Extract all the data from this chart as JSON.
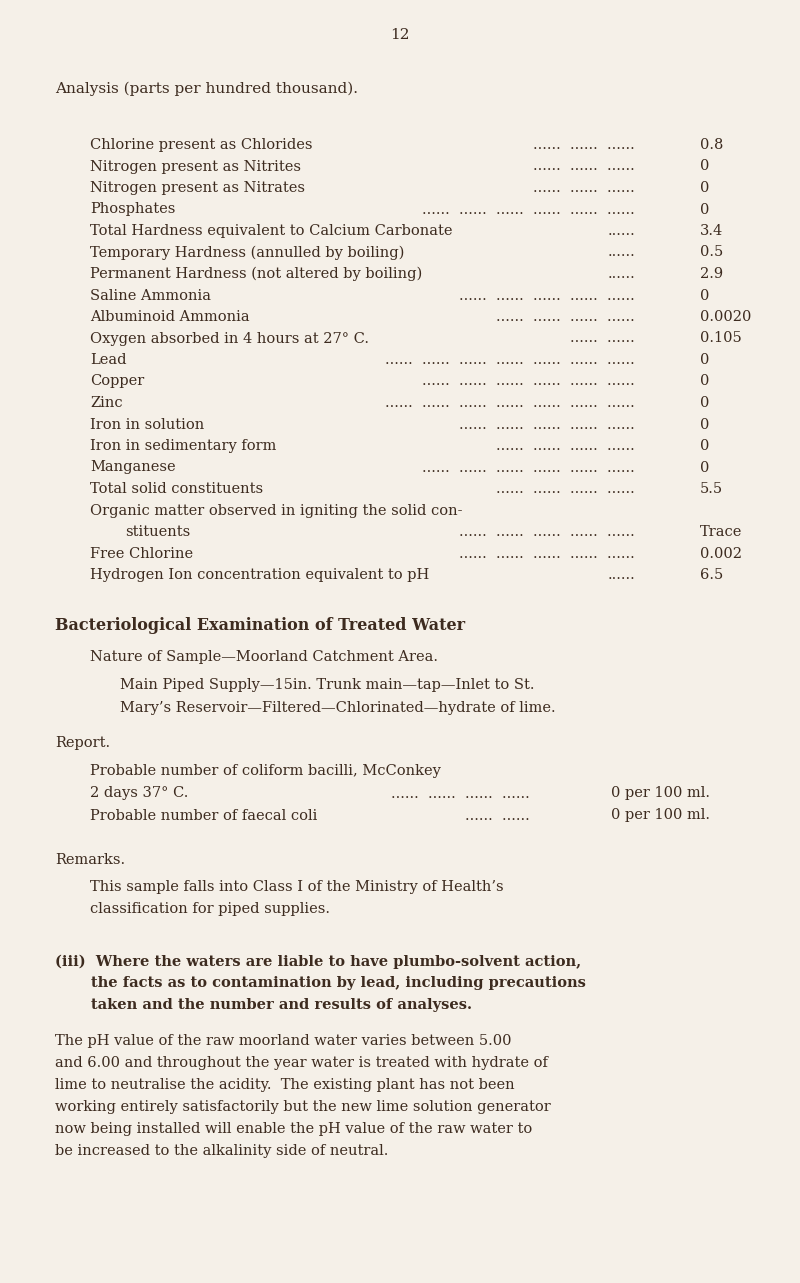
{
  "background_color": "#f5f0e8",
  "text_color": "#3d2b1f",
  "page_number": "12",
  "title": "Analysis (parts per hundred thousand).",
  "analysis_rows": [
    {
      "label": "Chlorine present as Chlorides",
      "dots": "......  ......  ......",
      "value": "0.8"
    },
    {
      "label": "Nitrogen present as Nitrites",
      "dots": "......  ......  ......",
      "value": "0"
    },
    {
      "label": "Nitrogen present as Nitrates",
      "dots": "......  ......  ......",
      "value": "0"
    },
    {
      "label": "Phosphates",
      "dots": "......  ......  ......  ......  ......  ......",
      "value": "0"
    },
    {
      "label": "Total Hardness equivalent to Calcium Carbonate",
      "dots": "......",
      "value": "3.4"
    },
    {
      "label": "Temporary Hardness (annulled by boiling)",
      "dots": "......",
      "value": "0.5"
    },
    {
      "label": "Permanent Hardness (not altered by boiling)",
      "dots": "......",
      "value": "2.9"
    },
    {
      "label": "Saline Ammonia",
      "dots": "......  ......  ......  ......  ......",
      "value": "0"
    },
    {
      "label": "Albuminoid Ammonia",
      "dots": "......  ......  ......  ......",
      "value": "0.0020"
    },
    {
      "label": "Oxygen absorbed in 4 hours at 27° C.",
      "dots": "......  ......",
      "value": "0.105"
    },
    {
      "label": "Lead",
      "dots": "......  ......  ......  ......  ......  ......  ......",
      "value": "0"
    },
    {
      "label": "Copper",
      "dots": "......  ......  ......  ......  ......  ......",
      "value": "0"
    },
    {
      "label": "Zinc",
      "dots": "......  ......  ......  ......  ......  ......  ......",
      "value": "0"
    },
    {
      "label": "Iron in solution",
      "dots": "......  ......  ......  ......  ......",
      "value": "0"
    },
    {
      "label": "Iron in sedimentary form",
      "dots": "......  ......  ......  ......",
      "value": "0"
    },
    {
      "label": "Manganese",
      "dots": "......  ......  ......  ......  ......  ......",
      "value": "0"
    },
    {
      "label": "Total solid constituents",
      "dots": "......  ......  ......  ......",
      "value": "5.5"
    },
    {
      "label": "Organic matter observed in igniting the solid con-",
      "dots": "",
      "value": "",
      "continuation": true
    },
    {
      "label": "        stituents",
      "dots": "......  ......  ......  ......  ......",
      "value": "Trace"
    },
    {
      "label": "Free Chlorine",
      "dots": "......  ......  ......  ......  ......",
      "value": "0.002"
    },
    {
      "label": "Hydrogen Ion concentration equivalent to pH",
      "dots": "......",
      "value": "6.5"
    }
  ],
  "section_title": "Bacteriological Examination of Treated Water",
  "nature_label": "Nature of Sample—Moorland Catchment Area.",
  "main_line1": "Main Piped Supply—15in. Trunk main—tap—Inlet to St.",
  "main_line2": "Mary’s Reservoir—Filtered—Chlorinated—hydrate of lime.",
  "report_label": "Report.",
  "probable_coliform": "Probable number of coliform bacilli, McConkey",
  "coliform_row_left": "2 days 37° C.",
  "coliform_row_dots": "......  ......  ......  ......",
  "coliform_row_right": "0 per 100 ml.",
  "faecal_left": "Probable number of faecal coli",
  "faecal_dots": "......  ......",
  "faecal_right": "0 per 100 ml.",
  "remarks_label": "Remarks.",
  "remarks_line1": "This sample falls into Class I of the Ministry of Health’s",
  "remarks_line2": "classification for piped supplies.",
  "iii_line1": "(iii)  Where the waters are liable to have plumbo-solvent action,",
  "iii_line2": "       the facts as to contamination by lead, including precautions",
  "iii_line3": "       taken and the number and results of analyses.",
  "body_line1": "The pH value of the raw moorland water varies between 5.00",
  "body_line2": "and 6.00 and throughout the year water is treated with hydrate of",
  "body_line3": "lime to neutralise the acidity.  The existing plant has not been",
  "body_line4": "working entirely satisfactorily but the new lime solution generator",
  "body_line5": "now being installed will enable the pH value of the raw water to",
  "body_line6": "be increased to the alkalinity side of neutral."
}
